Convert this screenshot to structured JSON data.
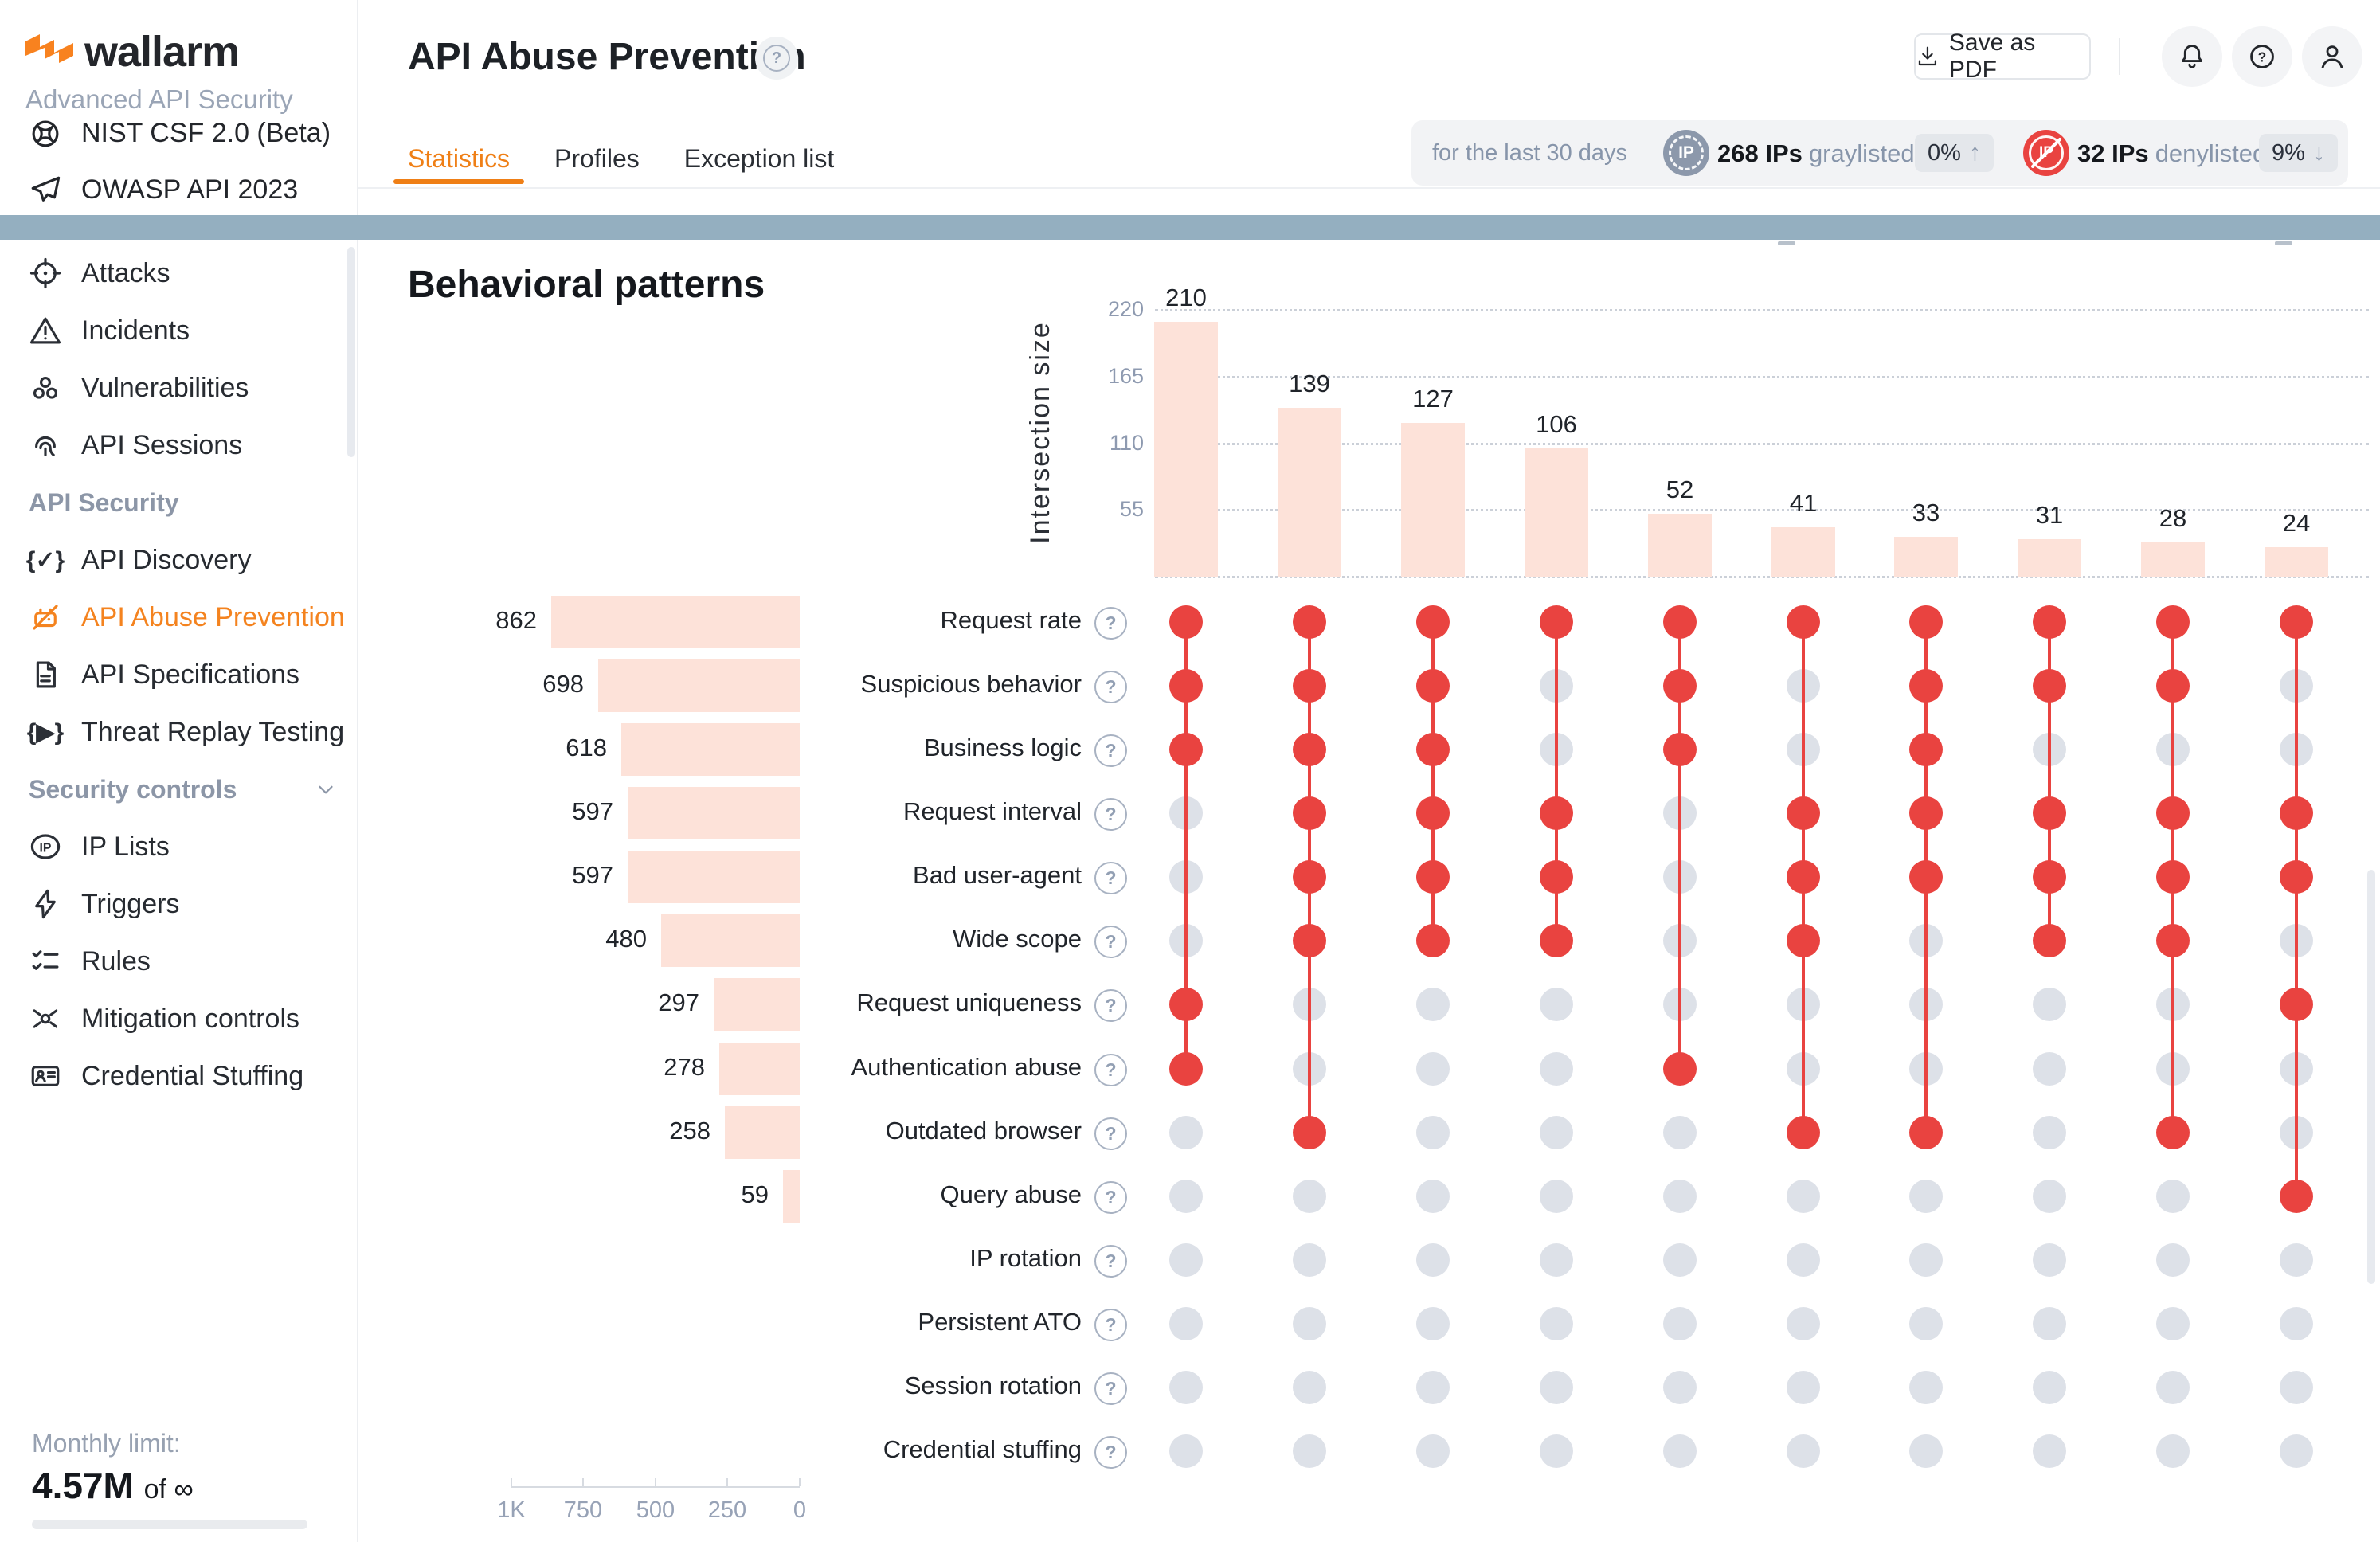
{
  "colors": {
    "accent_orange": "#f4831f",
    "tab_orange": "#ef7f16",
    "dot_on": "#e94340",
    "dot_off": "#dde1e8",
    "bar_pink": "#fde2d9",
    "band_blue": "#94afc0"
  },
  "sidebar": {
    "brand": "wallarm",
    "subtitle": "Advanced API Security",
    "top_links": [
      {
        "icon": "nist-knot-icon",
        "label": "NIST CSF 2.0 (Beta)"
      },
      {
        "icon": "paper-plane-icon",
        "label": "OWASP API 2023"
      }
    ],
    "nav": [
      {
        "kind": "item",
        "icon": "target-icon",
        "label": "Attacks"
      },
      {
        "kind": "item",
        "icon": "warning-triangle-icon",
        "label": "Incidents"
      },
      {
        "kind": "item",
        "icon": "biohazard-icon",
        "label": "Vulnerabilities"
      },
      {
        "kind": "item",
        "icon": "fingerprint-icon",
        "label": "API Sessions"
      },
      {
        "kind": "section",
        "label": "API Security"
      },
      {
        "kind": "item",
        "icon": "braces-check-icon",
        "label": "API Discovery"
      },
      {
        "kind": "item",
        "icon": "robot-slash-icon",
        "label": "API Abuse Prevention",
        "active": true
      },
      {
        "kind": "item",
        "icon": "document-icon",
        "label": "API Specifications"
      },
      {
        "kind": "item",
        "icon": "braces-play-icon",
        "label": "Threat Replay Testing"
      },
      {
        "kind": "section",
        "label": "Security controls",
        "chevron": true
      },
      {
        "kind": "item",
        "icon": "ip-oval-icon",
        "label": "IP Lists"
      },
      {
        "kind": "item",
        "icon": "lightning-icon",
        "label": "Triggers"
      },
      {
        "kind": "item",
        "icon": "checklist-icon",
        "label": "Rules"
      },
      {
        "kind": "item",
        "icon": "spider-icon",
        "label": "Mitigation controls"
      },
      {
        "kind": "item",
        "icon": "id-card-icon",
        "label": "Credential Stuffing"
      }
    ],
    "monthly_limit": {
      "label": "Monthly limit:",
      "value": "4.57M",
      "suffix": "of ∞"
    }
  },
  "header": {
    "title": "API Abuse Prevention",
    "tabs": [
      {
        "label": "Statistics",
        "active": true
      },
      {
        "label": "Profiles",
        "active": false
      },
      {
        "label": "Exception list",
        "active": false
      }
    ],
    "save_pdf_label": "Save as PDF"
  },
  "stats_bar": {
    "period": "for the last 30 days",
    "graylisted": {
      "count": "268 IPs",
      "label": "graylisted",
      "delta": "0%",
      "arrow": "↑"
    },
    "denylisted": {
      "count": "32 IPs",
      "label": "denylisted",
      "delta": "9%",
      "arrow": "↓"
    }
  },
  "chart_data": {
    "type": "upset",
    "title": "Behavioral patterns",
    "ylabel": "Intersection size",
    "intersection_sizes": [
      210,
      139,
      127,
      106,
      52,
      41,
      33,
      31,
      28,
      24
    ],
    "intersection_ticks": [
      220,
      165,
      110,
      55
    ],
    "set_axis_ticks": [
      [
        "1K",
        1000
      ],
      [
        "750",
        750
      ],
      [
        "500",
        500
      ],
      [
        "250",
        250
      ],
      [
        "0",
        0
      ]
    ],
    "behaviors": [
      {
        "label": "Request rate",
        "size": 862
      },
      {
        "label": "Suspicious behavior",
        "size": 698
      },
      {
        "label": "Business logic",
        "size": 618
      },
      {
        "label": "Request interval",
        "size": 597
      },
      {
        "label": "Bad user-agent",
        "size": 597
      },
      {
        "label": "Wide scope",
        "size": 480
      },
      {
        "label": "Request uniqueness",
        "size": 297
      },
      {
        "label": "Authentication abuse",
        "size": 278
      },
      {
        "label": "Outdated browser",
        "size": 258
      },
      {
        "label": "Query abuse",
        "size": 59
      },
      {
        "label": "IP rotation",
        "size": null
      },
      {
        "label": "Persistent ATO",
        "size": null
      },
      {
        "label": "Session rotation",
        "size": null
      },
      {
        "label": "Credential stuffing",
        "size": null
      }
    ],
    "membership": [
      [
        1,
        1,
        1,
        0,
        0,
        0,
        1,
        1,
        0,
        0,
        0,
        0,
        0,
        0
      ],
      [
        1,
        1,
        1,
        1,
        1,
        1,
        0,
        0,
        1,
        0,
        0,
        0,
        0,
        0
      ],
      [
        1,
        1,
        1,
        1,
        1,
        1,
        0,
        0,
        0,
        0,
        0,
        0,
        0,
        0
      ],
      [
        1,
        0,
        0,
        1,
        1,
        1,
        0,
        0,
        0,
        0,
        0,
        0,
        0,
        0
      ],
      [
        1,
        1,
        1,
        0,
        0,
        0,
        0,
        1,
        0,
        0,
        0,
        0,
        0,
        0
      ],
      [
        1,
        0,
        0,
        1,
        1,
        1,
        0,
        0,
        1,
        0,
        0,
        0,
        0,
        0
      ],
      [
        1,
        1,
        1,
        1,
        1,
        0,
        0,
        0,
        1,
        0,
        0,
        0,
        0,
        0
      ],
      [
        1,
        1,
        0,
        1,
        1,
        1,
        0,
        0,
        0,
        0,
        0,
        0,
        0,
        0
      ],
      [
        1,
        1,
        0,
        1,
        1,
        1,
        0,
        0,
        1,
        0,
        0,
        0,
        0,
        0
      ],
      [
        1,
        0,
        0,
        1,
        1,
        0,
        1,
        0,
        0,
        1,
        0,
        0,
        0,
        0
      ]
    ]
  }
}
